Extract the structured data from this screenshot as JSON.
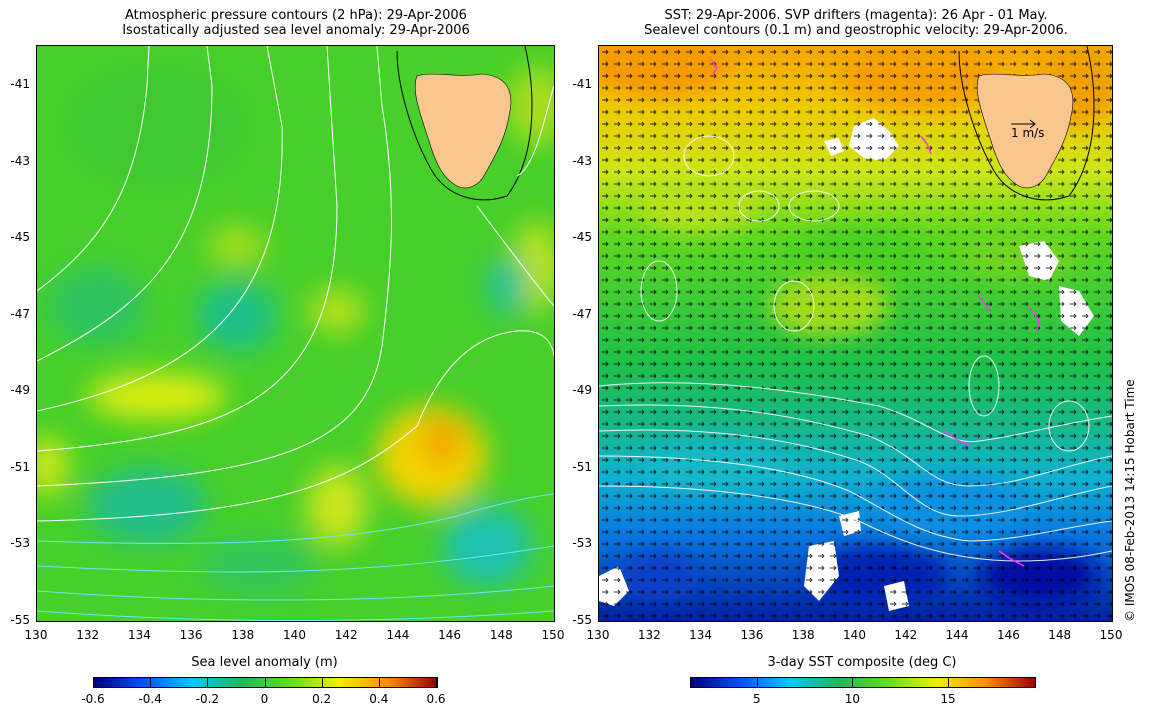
{
  "left_panel": {
    "title_line1": "Atmospheric pressure contours (2 hPa): 29-Apr-2006",
    "title_line2": "Isostatically adjusted sea level anomaly: 29-Apr-2006",
    "colorbar_title": "Sea level anomaly (m)",
    "colorbar_ticks": [
      "-0.6",
      "-0.4",
      "-0.2",
      "0",
      "0.2",
      "0.4",
      "0.6"
    ],
    "colorbar_range": [
      -0.6,
      0.6
    ],
    "colors": [
      "#00007f",
      "#0050ff",
      "#00c8ff",
      "#1fb85a",
      "#5ee01c",
      "#f0f000",
      "#ff8c00",
      "#9a0000"
    ]
  },
  "right_panel": {
    "title_line1": "SST: 29-Apr-2006. SVP drifters (magenta): 26 Apr - 01 May.",
    "title_line2": "Sealevel contours (0.1 m) and geostrophic velocity: 29-Apr-2006.",
    "colorbar_title": "3-day SST composite (deg C)",
    "colorbar_ticks": [
      "5",
      "10",
      "15"
    ],
    "colorbar_range": [
      1.5,
      19.5
    ],
    "velocity_legend": "1 m/s",
    "colors": [
      "#00007f",
      "#0050ff",
      "#00c8ff",
      "#1fb85a",
      "#5ee01c",
      "#f0f000",
      "#ff8c00",
      "#9a0000"
    ]
  },
  "axes": {
    "lat_ticks": [
      "-41",
      "-43",
      "-45",
      "-47",
      "-49",
      "-51",
      "-53",
      "-55"
    ],
    "lon_ticks": [
      "130",
      "132",
      "134",
      "136",
      "138",
      "140",
      "142",
      "144",
      "146",
      "148",
      "150"
    ],
    "lat_range": [
      -40,
      -55
    ],
    "lon_range": [
      130,
      150
    ]
  },
  "side_note": "© IMOS 08-Feb-2013 14:15 Hobart Time"
}
